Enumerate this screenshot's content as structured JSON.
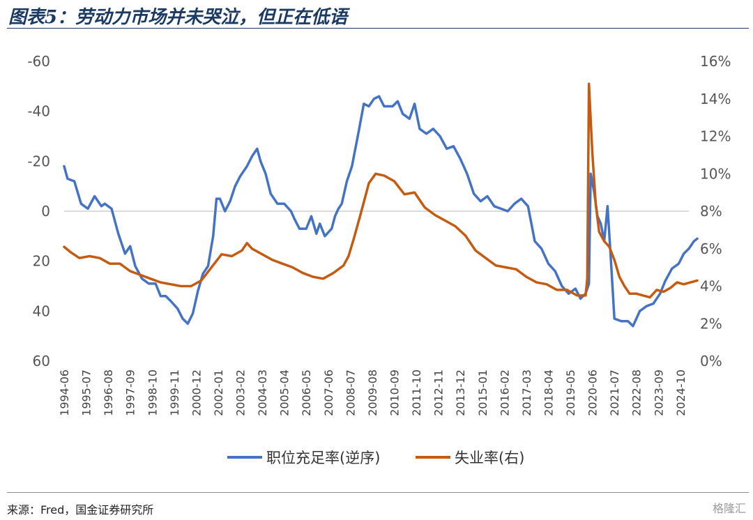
{
  "header": {
    "title": "图表5：劳动力市场并未哭泣，但正在低语"
  },
  "footer": {
    "source": "来源：Fred，国金证券研究所",
    "watermark": "格隆汇"
  },
  "colors": {
    "title": "#1b3a63",
    "series_left": "#4472c4",
    "series_right": "#c55a11"
  },
  "chart_data": {
    "type": "line",
    "title": "",
    "xlabel": "",
    "ylabel": "",
    "x_tick_labels": [
      "1994-06",
      "1995-07",
      "1996-08",
      "1997-09",
      "1998-10",
      "1999-11",
      "2000-12",
      "2002-01",
      "2003-02",
      "2004-03",
      "2005-04",
      "2006-05",
      "2007-06",
      "2008-07",
      "2009-08",
      "2010-09",
      "2011-10",
      "2012-11",
      "2013-12",
      "2015-01",
      "2016-02",
      "2017-03",
      "2018-04",
      "2019-05",
      "2020-06",
      "2021-07",
      "2022-08",
      "2023-09",
      "2024-10"
    ],
    "x_range": [
      "1994-06",
      "2025-03"
    ],
    "y_left": {
      "reversed": true,
      "ylim": [
        -60,
        60
      ],
      "ticks": [
        "-60",
        "-40",
        "-20",
        "0",
        "20",
        "40",
        "60"
      ]
    },
    "y_right": {
      "ylim": [
        0,
        16
      ],
      "ticks": [
        "16%",
        "14%",
        "12%",
        "10%",
        "8%",
        "6%",
        "4%",
        "2%",
        "0%"
      ]
    },
    "grid": false,
    "legend": "bottom",
    "series": [
      {
        "name": "职位充足率(逆序)",
        "axis": "left",
        "points": [
          [
            "1994-06",
            -18
          ],
          [
            "1994-08",
            -13
          ],
          [
            "1994-12",
            -12
          ],
          [
            "1995-04",
            -3
          ],
          [
            "1995-08",
            -1
          ],
          [
            "1995-12",
            -6
          ],
          [
            "1996-04",
            -2
          ],
          [
            "1996-06",
            -3
          ],
          [
            "1996-10",
            -1
          ],
          [
            "1997-02",
            9
          ],
          [
            "1997-06",
            17
          ],
          [
            "1997-09",
            14
          ],
          [
            "1997-12",
            22
          ],
          [
            "1998-04",
            27
          ],
          [
            "1998-08",
            29
          ],
          [
            "1998-12",
            29
          ],
          [
            "1999-03",
            34
          ],
          [
            "1999-06",
            34
          ],
          [
            "1999-09",
            36
          ],
          [
            "2000-01",
            39
          ],
          [
            "2000-04",
            43
          ],
          [
            "2000-07",
            45
          ],
          [
            "2000-10",
            41
          ],
          [
            "2001-01",
            32
          ],
          [
            "2001-04",
            25
          ],
          [
            "2001-07",
            22
          ],
          [
            "2001-10",
            10
          ],
          [
            "2001-12",
            -5
          ],
          [
            "2002-02",
            -5
          ],
          [
            "2002-05",
            0
          ],
          [
            "2002-08",
            -4
          ],
          [
            "2002-11",
            -10
          ],
          [
            "2003-02",
            -14
          ],
          [
            "2003-06",
            -18
          ],
          [
            "2003-09",
            -22
          ],
          [
            "2003-12",
            -25
          ],
          [
            "2004-02",
            -20
          ],
          [
            "2004-05",
            -15
          ],
          [
            "2004-08",
            -7
          ],
          [
            "2004-12",
            -3
          ],
          [
            "2005-04",
            -3
          ],
          [
            "2005-08",
            0
          ],
          [
            "2005-10",
            3
          ],
          [
            "2006-01",
            7
          ],
          [
            "2006-05",
            7
          ],
          [
            "2006-08",
            2
          ],
          [
            "2006-11",
            9
          ],
          [
            "2007-01",
            5
          ],
          [
            "2007-04",
            10
          ],
          [
            "2007-08",
            7
          ],
          [
            "2007-10",
            2
          ],
          [
            "2007-12",
            -1
          ],
          [
            "2008-02",
            -3
          ],
          [
            "2008-05",
            -12
          ],
          [
            "2008-08",
            -18
          ],
          [
            "2008-12",
            -32
          ],
          [
            "2009-03",
            -43
          ],
          [
            "2009-06",
            -42
          ],
          [
            "2009-09",
            -45
          ],
          [
            "2009-12",
            -46
          ],
          [
            "2010-03",
            -42
          ],
          [
            "2010-08",
            -42
          ],
          [
            "2010-11",
            -44
          ],
          [
            "2011-02",
            -39
          ],
          [
            "2011-06",
            -37
          ],
          [
            "2011-09",
            -43
          ],
          [
            "2011-12",
            -33
          ],
          [
            "2012-04",
            -31
          ],
          [
            "2012-08",
            -33
          ],
          [
            "2012-12",
            -30
          ],
          [
            "2013-04",
            -25
          ],
          [
            "2013-08",
            -26
          ],
          [
            "2013-12",
            -21
          ],
          [
            "2014-04",
            -15
          ],
          [
            "2014-08",
            -7
          ],
          [
            "2014-12",
            -4
          ],
          [
            "2015-04",
            -6
          ],
          [
            "2015-08",
            -2
          ],
          [
            "2015-12",
            -1
          ],
          [
            "2016-04",
            0
          ],
          [
            "2016-08",
            -3
          ],
          [
            "2016-12",
            -5
          ],
          [
            "2017-04",
            -2
          ],
          [
            "2017-08",
            12
          ],
          [
            "2017-12",
            15
          ],
          [
            "2018-04",
            21
          ],
          [
            "2018-08",
            24
          ],
          [
            "2018-12",
            30
          ],
          [
            "2019-04",
            33
          ],
          [
            "2019-08",
            31
          ],
          [
            "2019-11",
            35
          ],
          [
            "2020-02",
            33
          ],
          [
            "2020-04",
            29
          ],
          [
            "2020-05",
            -15
          ],
          [
            "2020-07",
            -8
          ],
          [
            "2020-09",
            2
          ],
          [
            "2020-11",
            5
          ],
          [
            "2021-01",
            12
          ],
          [
            "2021-03",
            -2
          ],
          [
            "2021-05",
            20
          ],
          [
            "2021-07",
            43
          ],
          [
            "2021-11",
            44
          ],
          [
            "2022-03",
            44
          ],
          [
            "2022-06",
            46
          ],
          [
            "2022-10",
            40
          ],
          [
            "2023-02",
            38
          ],
          [
            "2023-06",
            37
          ],
          [
            "2023-10",
            33
          ],
          [
            "2024-01",
            28
          ],
          [
            "2024-05",
            23
          ],
          [
            "2024-09",
            21
          ],
          [
            "2024-12",
            17
          ],
          [
            "2025-03",
            15
          ],
          [
            "2025-06",
            12
          ],
          [
            "2025-08",
            11
          ]
        ]
      },
      {
        "name": "失业率(右)",
        "axis": "right",
        "points": [
          [
            "1994-06",
            6.1
          ],
          [
            "1994-10",
            5.8
          ],
          [
            "1995-03",
            5.5
          ],
          [
            "1995-09",
            5.6
          ],
          [
            "1996-03",
            5.5
          ],
          [
            "1996-09",
            5.2
          ],
          [
            "1997-03",
            5.2
          ],
          [
            "1997-09",
            4.8
          ],
          [
            "1998-03",
            4.6
          ],
          [
            "1998-09",
            4.4
          ],
          [
            "1999-03",
            4.2
          ],
          [
            "1999-09",
            4.1
          ],
          [
            "2000-03",
            4.0
          ],
          [
            "2000-09",
            4.0
          ],
          [
            "2001-03",
            4.3
          ],
          [
            "2001-09",
            5.0
          ],
          [
            "2002-03",
            5.7
          ],
          [
            "2002-09",
            5.6
          ],
          [
            "2003-03",
            5.9
          ],
          [
            "2003-06",
            6.3
          ],
          [
            "2003-09",
            6.0
          ],
          [
            "2004-03",
            5.7
          ],
          [
            "2004-09",
            5.4
          ],
          [
            "2005-03",
            5.2
          ],
          [
            "2005-09",
            5.0
          ],
          [
            "2006-03",
            4.7
          ],
          [
            "2006-09",
            4.5
          ],
          [
            "2007-03",
            4.4
          ],
          [
            "2007-09",
            4.7
          ],
          [
            "2008-03",
            5.1
          ],
          [
            "2008-06",
            5.6
          ],
          [
            "2008-09",
            6.5
          ],
          [
            "2009-01",
            7.8
          ],
          [
            "2009-06",
            9.5
          ],
          [
            "2009-10",
            10.0
          ],
          [
            "2010-03",
            9.9
          ],
          [
            "2010-09",
            9.6
          ],
          [
            "2011-03",
            8.9
          ],
          [
            "2011-09",
            9.0
          ],
          [
            "2012-03",
            8.2
          ],
          [
            "2012-09",
            7.8
          ],
          [
            "2013-03",
            7.5
          ],
          [
            "2013-09",
            7.2
          ],
          [
            "2014-03",
            6.7
          ],
          [
            "2014-09",
            5.9
          ],
          [
            "2015-03",
            5.5
          ],
          [
            "2015-09",
            5.1
          ],
          [
            "2016-03",
            5.0
          ],
          [
            "2016-09",
            4.9
          ],
          [
            "2017-03",
            4.5
          ],
          [
            "2017-09",
            4.2
          ],
          [
            "2018-03",
            4.1
          ],
          [
            "2018-09",
            3.8
          ],
          [
            "2019-03",
            3.8
          ],
          [
            "2019-09",
            3.5
          ],
          [
            "2020-02",
            3.5
          ],
          [
            "2020-03",
            4.4
          ],
          [
            "2020-04",
            14.8
          ],
          [
            "2020-06",
            11.1
          ],
          [
            "2020-08",
            8.4
          ],
          [
            "2020-10",
            6.9
          ],
          [
            "2021-01",
            6.4
          ],
          [
            "2021-04",
            6.1
          ],
          [
            "2021-07",
            5.4
          ],
          [
            "2021-10",
            4.5
          ],
          [
            "2022-01",
            4.0
          ],
          [
            "2022-04",
            3.6
          ],
          [
            "2022-08",
            3.6
          ],
          [
            "2022-12",
            3.5
          ],
          [
            "2023-04",
            3.4
          ],
          [
            "2023-08",
            3.8
          ],
          [
            "2023-12",
            3.7
          ],
          [
            "2024-04",
            3.9
          ],
          [
            "2024-08",
            4.2
          ],
          [
            "2024-12",
            4.1
          ],
          [
            "2025-04",
            4.2
          ],
          [
            "2025-08",
            4.3
          ]
        ]
      }
    ]
  }
}
